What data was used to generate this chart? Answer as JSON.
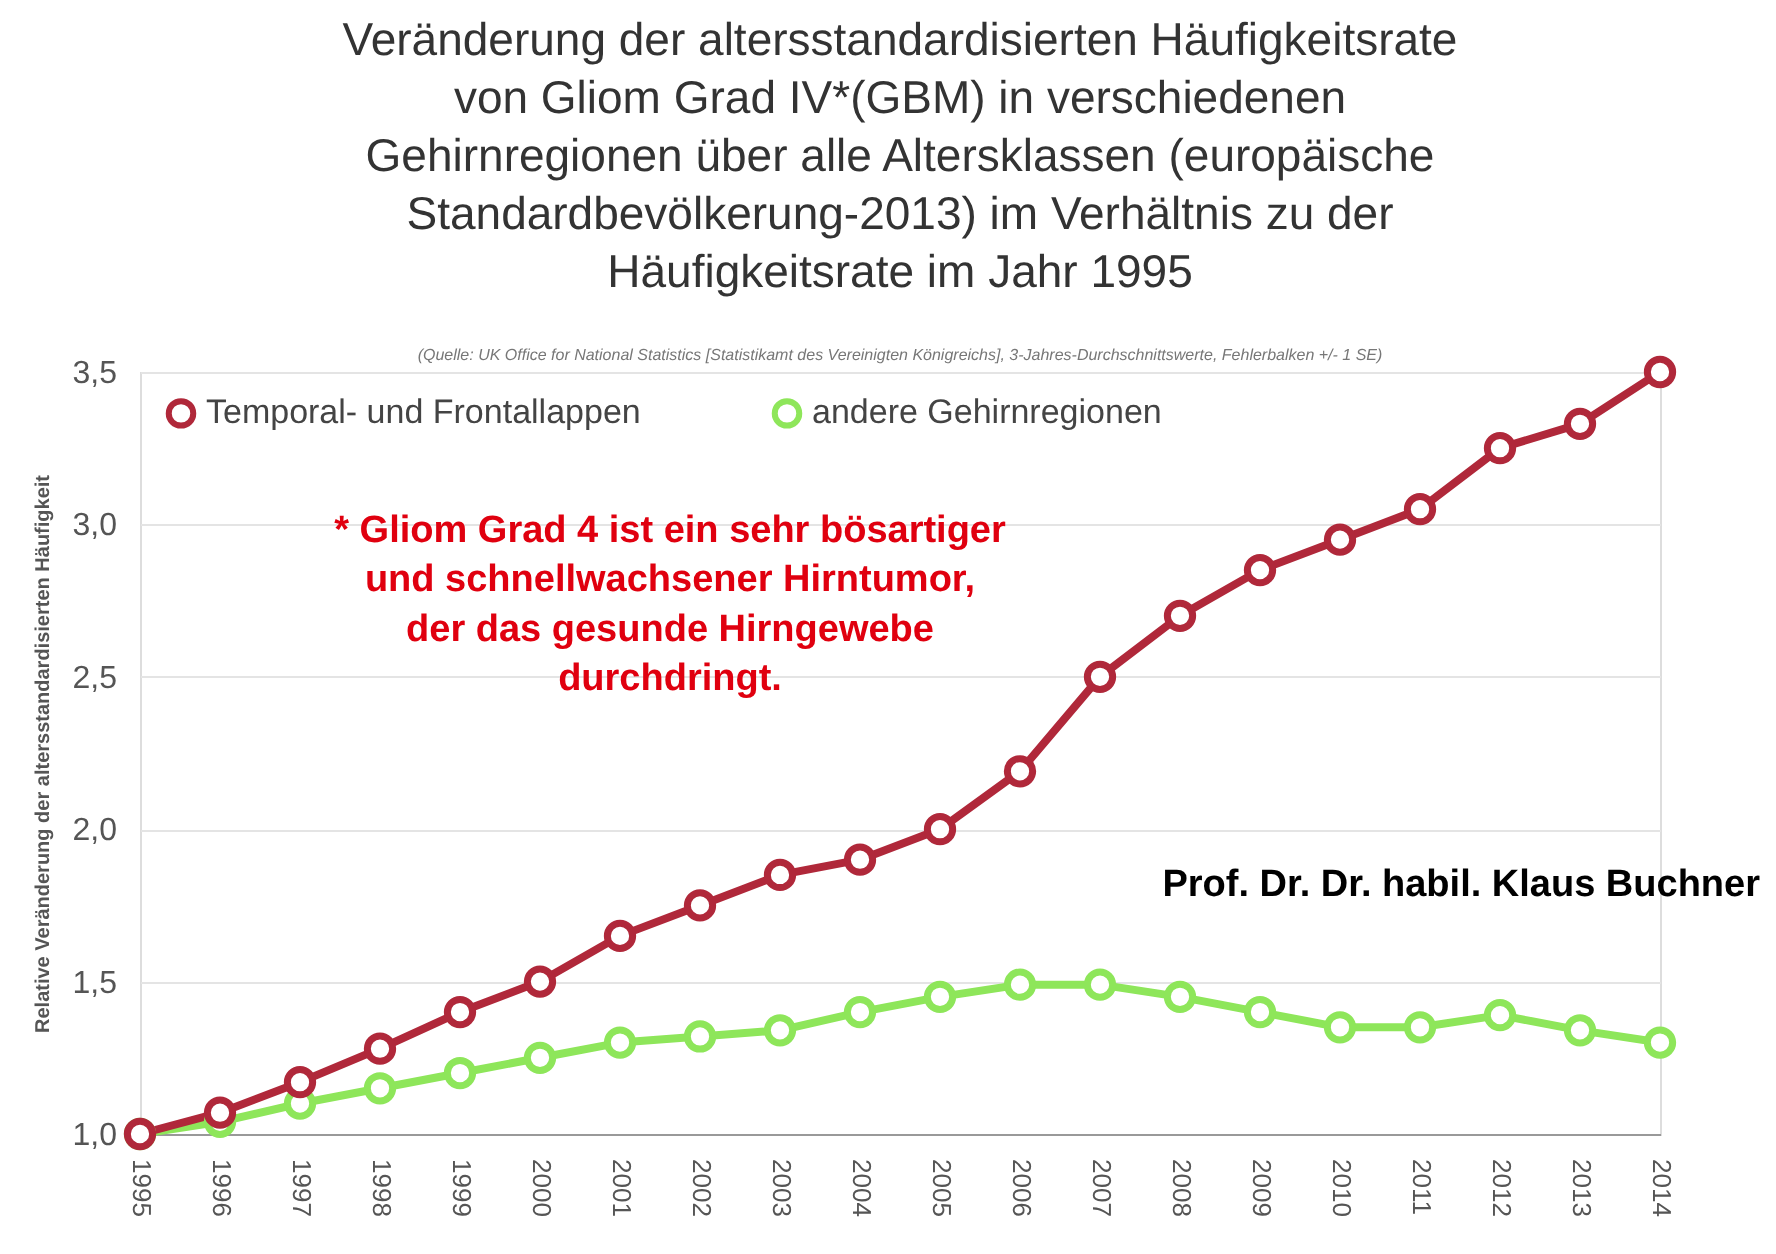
{
  "chart_data": {
    "type": "line",
    "title": "Veränderung der altersstandardisierten Häufigkeitsrate\nvon Gliom Grad IV*(GBM) in verschiedenen\nGehirnregionen über alle Altersklassen (europäische\nStandardbevölkerung-2013) im Verhältnis zu der\nHäufigkeitsrate im Jahr 1995",
    "ylabel": "Relative Veränderung der altersstandardisierten Häufigkeit",
    "categories": [
      "1995",
      "1996",
      "1997",
      "1998",
      "1999",
      "2000",
      "2001",
      "2002",
      "2003",
      "2004",
      "2005",
      "2006",
      "2007",
      "2008",
      "2009",
      "2010",
      "2011",
      "2012",
      "2013",
      "2014"
    ],
    "series": [
      {
        "name": "Temporal- und Frontallappen",
        "color": "#b0283a",
        "values": [
          1.0,
          1.07,
          1.17,
          1.28,
          1.4,
          1.5,
          1.65,
          1.75,
          1.85,
          1.9,
          2.0,
          2.19,
          2.5,
          2.7,
          2.85,
          2.95,
          3.05,
          3.25,
          3.33,
          3.5
        ]
      },
      {
        "name": "andere Gehirnregionen",
        "color": "#8ee65a",
        "values": [
          1.0,
          1.04,
          1.1,
          1.15,
          1.2,
          1.25,
          1.3,
          1.32,
          1.34,
          1.4,
          1.45,
          1.49,
          1.49,
          1.45,
          1.4,
          1.35,
          1.35,
          1.39,
          1.34,
          1.3
        ]
      }
    ],
    "ylim": [
      1.0,
      3.5
    ],
    "yticks": [
      {
        "value": 1.0,
        "label": "1,0"
      },
      {
        "value": 1.5,
        "label": "1,5"
      },
      {
        "value": 2.0,
        "label": "2,0"
      },
      {
        "value": 2.5,
        "label": "2,5"
      },
      {
        "value": 3.0,
        "label": "3,0"
      },
      {
        "value": 3.5,
        "label": "3,5"
      }
    ],
    "grid": "y",
    "legend": "top left",
    "marker": "circle",
    "line_style": "solid",
    "annotations": [
      "(Quelle: UK Office for National Statistics [Statistikamt des Vereinigten Königreichs], 3-Jahres-Durchschnittswerte, Fehlerbalken +/- 1 SE)",
      "* Gliom Grad 4 ist ein sehr bösartiger\nund schnellwachsener Hirntumor,\nder das gesunde Hirngewebe\ndurchdringt.",
      "Prof. Dr. Dr. habil. Klaus Buchner"
    ]
  }
}
